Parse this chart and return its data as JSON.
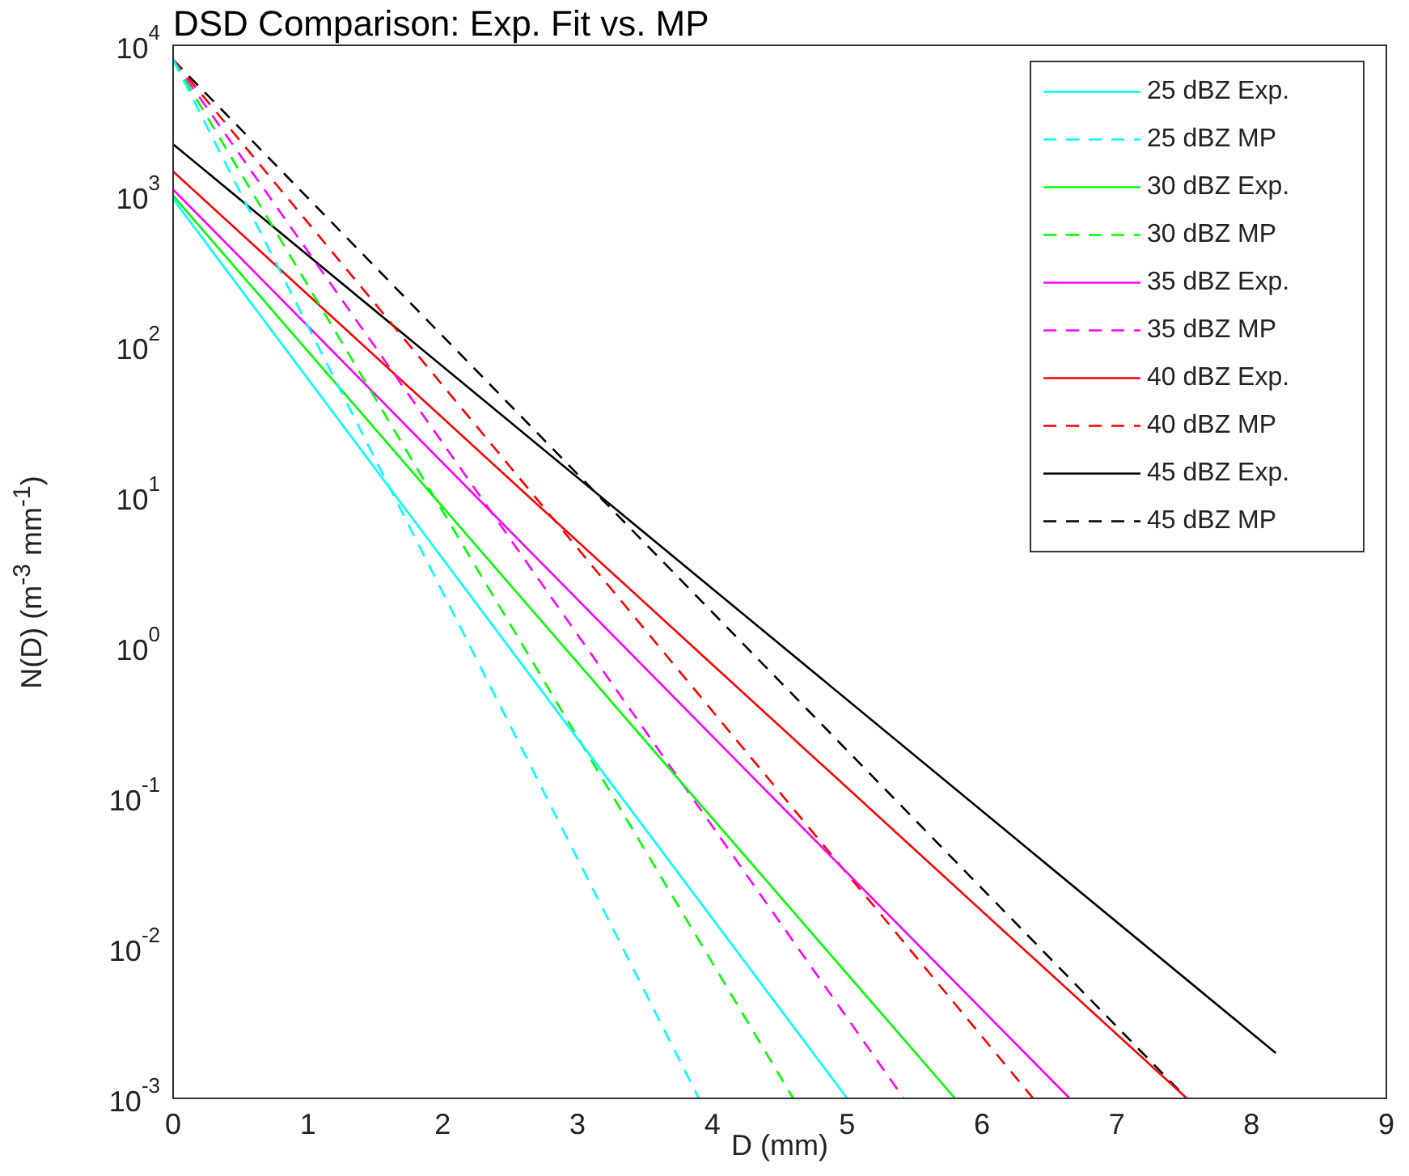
{
  "chart_data": {
    "type": "line",
    "title": "DSD Comparison: Exp. Fit vs. MP",
    "xlabel": "D (mm)",
    "ylabel": "N(D) (m$^{-3}$ mm$^{-1}$)",
    "log": "y",
    "grid": false,
    "legend": "top right",
    "marker": "none",
    "xlim": [
      0,
      9
    ],
    "xticks": [
      0,
      1,
      2,
      3,
      4,
      5,
      6,
      7,
      8,
      9
    ],
    "ylim": [
      0.001,
      10000
    ],
    "yticks": [
      {
        "value": 0.001,
        "label": "10$^{-3}$"
      },
      {
        "value": 0.01,
        "label": "10$^{-2}$"
      },
      {
        "value": 0.1,
        "label": "10$^{-1}$"
      },
      {
        "value": 1,
        "label": "10$^{0}$"
      },
      {
        "value": 10,
        "label": "10$^{1}$"
      },
      {
        "value": 100,
        "label": "10$^{2}$"
      },
      {
        "value": 1000,
        "label": "10$^{3}$"
      },
      {
        "value": 10000,
        "label": "10$^{4}$"
      }
    ],
    "series": [
      {
        "name": "25 dBZ Exp.",
        "color": "#00ffff",
        "line_style": "solid",
        "x": [
          0,
          5.0
        ],
        "values": [
          950,
          0.001
        ]
      },
      {
        "name": "25 dBZ MP",
        "color": "#00ffff",
        "line_style": "dashed",
        "x": [
          0,
          3.9
        ],
        "values": [
          8000,
          0.001
        ]
      },
      {
        "name": "30 dBZ Exp.",
        "color": "#00ff00",
        "line_style": "solid",
        "x": [
          0,
          5.8
        ],
        "values": [
          1000,
          0.001
        ]
      },
      {
        "name": "30 dBZ MP",
        "color": "#00ff00",
        "line_style": "dashed",
        "x": [
          0,
          4.6
        ],
        "values": [
          8000,
          0.001
        ]
      },
      {
        "name": "35 dBZ Exp.",
        "color": "#ff00ff",
        "line_style": "solid",
        "x": [
          0,
          6.65
        ],
        "values": [
          1100,
          0.001
        ]
      },
      {
        "name": "35 dBZ MP",
        "color": "#ff00ff",
        "line_style": "dashed",
        "x": [
          0,
          5.42
        ],
        "values": [
          8000,
          0.001
        ]
      },
      {
        "name": "40 dBZ Exp.",
        "color": "#ff0000",
        "line_style": "solid",
        "x": [
          0,
          7.52
        ],
        "values": [
          1450,
          0.001
        ]
      },
      {
        "name": "40 dBZ MP",
        "color": "#ff0000",
        "line_style": "dashed",
        "x": [
          0,
          6.38
        ],
        "values": [
          8000,
          0.001
        ]
      },
      {
        "name": "45 dBZ Exp.",
        "color": "#000000",
        "line_style": "solid",
        "x": [
          0,
          8.18
        ],
        "values": [
          2200,
          0.002
        ]
      },
      {
        "name": "45 dBZ MP",
        "color": "#000000",
        "line_style": "dashed",
        "x": [
          0,
          7.52
        ],
        "values": [
          8000,
          0.001
        ]
      }
    ]
  }
}
